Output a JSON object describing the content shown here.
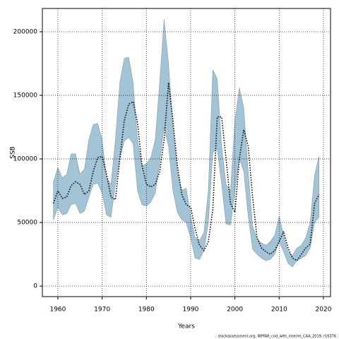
{
  "chart_data": {
    "type": "band-line",
    "xlabel": "Years",
    "ylabel": "SSB",
    "footnote": "stockassessment.org, IBPFAR_cod_with_interim_CAA_2019, r16376",
    "x": [
      1959,
      1960,
      1961,
      1962,
      1963,
      1964,
      1965,
      1966,
      1967,
      1968,
      1969,
      1970,
      1971,
      1972,
      1973,
      1974,
      1975,
      1976,
      1977,
      1978,
      1979,
      1980,
      1981,
      1982,
      1983,
      1984,
      1985,
      1986,
      1987,
      1988,
      1989,
      1990,
      1991,
      1992,
      1993,
      1994,
      1995,
      1996,
      1997,
      1998,
      1999,
      2000,
      2001,
      2002,
      2003,
      2004,
      2005,
      2006,
      2007,
      2008,
      2009,
      2010,
      2011,
      2012,
      2013,
      2014,
      2015,
      2016,
      2017,
      2018,
      2019
    ],
    "values": [
      65000,
      75000,
      69000,
      70000,
      79000,
      82000,
      80000,
      72000,
      75000,
      90000,
      101000,
      102000,
      88000,
      70000,
      68000,
      100000,
      130000,
      143000,
      145000,
      128000,
      95000,
      80000,
      78000,
      80000,
      90000,
      115000,
      160000,
      130000,
      95000,
      72000,
      64000,
      62000,
      45000,
      32000,
      28000,
      35000,
      60000,
      133000,
      133000,
      100000,
      65000,
      58000,
      100000,
      123000,
      110000,
      70000,
      38000,
      30000,
      27000,
      25000,
      28000,
      35000,
      43000,
      30000,
      22000,
      20000,
      25000,
      30000,
      33000,
      65000,
      72000
    ],
    "upper": [
      82000,
      93000,
      85000,
      88000,
      104000,
      104000,
      88000,
      92000,
      115000,
      127000,
      128000,
      115000,
      85000,
      80000,
      115000,
      160000,
      179000,
      180000,
      160000,
      115000,
      95000,
      96000,
      101000,
      115000,
      160000,
      210000,
      175000,
      125000,
      90000,
      75000,
      77000,
      55000,
      38000,
      36000,
      42000,
      75000,
      170000,
      163000,
      110000,
      80000,
      75000,
      130000,
      156000,
      140000,
      90000,
      47000,
      37000,
      34000,
      32000,
      35000,
      40000,
      55000,
      40000,
      27000,
      24000,
      30000,
      32000,
      38000,
      50000,
      87000,
      102000
    ],
    "lower": [
      52000,
      62000,
      56000,
      57000,
      64000,
      65000,
      57000,
      59000,
      70000,
      80000,
      81000,
      73000,
      56000,
      54000,
      80000,
      100000,
      114000,
      117000,
      112000,
      75000,
      64000,
      63000,
      66000,
      73000,
      97000,
      125000,
      110000,
      75000,
      58000,
      52000,
      50000,
      38000,
      22000,
      21000,
      28000,
      50000,
      105000,
      108000,
      80000,
      49000,
      48000,
      75000,
      100000,
      90000,
      55000,
      29000,
      25000,
      22000,
      20000,
      21000,
      25000,
      35000,
      27000,
      18000,
      15000,
      20000,
      22000,
      24000,
      30000,
      50000,
      54000
    ],
    "line_color": "#000000",
    "band_color": "#a3c4d6",
    "xlim": [
      1956.5,
      2021.6
    ],
    "ylim": [
      -8300,
      218300
    ],
    "xticks": [
      1960,
      1970,
      1980,
      1990,
      2000,
      2010,
      2020
    ],
    "yticks": [
      0,
      50000,
      100000,
      150000,
      200000
    ],
    "grid": true
  }
}
